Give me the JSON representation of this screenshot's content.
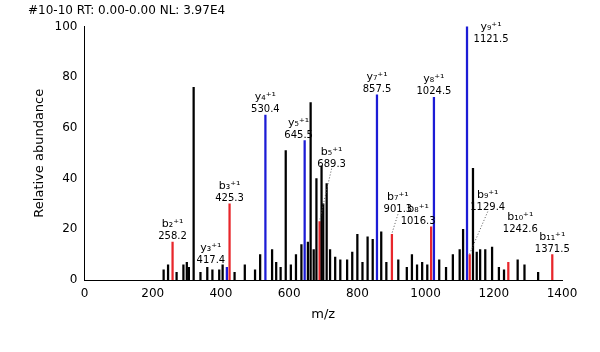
{
  "chart_data": {
    "type": "bar",
    "title": "#10-10 RT: 0.00-0.00 NL: 3.97E4",
    "x_label": "m/z",
    "y_label": "Relative abundance",
    "x": [
      232,
      245,
      258.2,
      270,
      290,
      300,
      306,
      320,
      340,
      360,
      375,
      395,
      405,
      417.4,
      425.3,
      440,
      470,
      500,
      515,
      530.4,
      550,
      562,
      575,
      590,
      605,
      620,
      636,
      645.5,
      655,
      663,
      672,
      680,
      689.3,
      695,
      700,
      710,
      720,
      735,
      750,
      770,
      785,
      800,
      815,
      830,
      845,
      857.5,
      870,
      885,
      901.3,
      920,
      945,
      960,
      975,
      990,
      1005,
      1016.3,
      1024.5,
      1040,
      1060,
      1080,
      1100,
      1110,
      1121.5,
      1129.4,
      1139,
      1150,
      1160,
      1175,
      1195,
      1215,
      1230,
      1242.6,
      1270,
      1290,
      1330,
      1371.5
    ],
    "values": [
      4,
      6,
      15,
      3,
      6,
      7,
      5,
      76,
      3,
      5,
      4,
      4,
      6,
      5,
      30,
      3,
      6,
      4,
      10,
      65,
      12,
      7,
      5,
      51,
      6,
      10,
      14,
      55,
      15,
      70,
      12,
      40,
      23,
      45,
      30,
      38,
      12,
      9,
      8,
      8,
      11,
      18,
      7,
      17,
      16,
      73,
      19,
      7,
      18,
      8,
      5,
      10,
      6,
      7,
      6,
      21,
      72,
      8,
      5,
      10,
      12,
      20,
      100,
      10,
      44,
      11,
      12,
      12,
      13,
      5,
      4,
      7,
      8,
      6,
      3,
      10
    ],
    "colors": [
      "#000000",
      "#000000",
      "#e8262b",
      "#000000",
      "#000000",
      "#000000",
      "#000000",
      "#000000",
      "#000000",
      "#000000",
      "#000000",
      "#000000",
      "#000000",
      "#1c1cd6",
      "#e8262b",
      "#000000",
      "#000000",
      "#000000",
      "#000000",
      "#1c1cd6",
      "#000000",
      "#000000",
      "#000000",
      "#000000",
      "#000000",
      "#000000",
      "#000000",
      "#1c1cd6",
      "#000000",
      "#000000",
      "#000000",
      "#000000",
      "#e8262b",
      "#000000",
      "#000000",
      "#000000",
      "#000000",
      "#000000",
      "#000000",
      "#000000",
      "#000000",
      "#000000",
      "#000000",
      "#000000",
      "#000000",
      "#1c1cd6",
      "#000000",
      "#000000",
      "#e8262b",
      "#000000",
      "#000000",
      "#000000",
      "#000000",
      "#000000",
      "#000000",
      "#e8262b",
      "#1c1cd6",
      "#000000",
      "#000000",
      "#000000",
      "#000000",
      "#000000",
      "#1c1cd6",
      "#e8262b",
      "#000000",
      "#000000",
      "#000000",
      "#000000",
      "#000000",
      "#000000",
      "#000000",
      "#e8262b",
      "#000000",
      "#000000",
      "#000000",
      "#e8262b"
    ],
    "annotations": [
      {
        "text": "b₂⁺¹",
        "x": 258.2
      },
      {
        "text": "y₃⁺¹",
        "x": 417.4
      },
      {
        "text": "b₃⁺¹",
        "x": 425.3
      },
      {
        "text": "y₄⁺¹",
        "x": 530.4
      },
      {
        "text": "y₅⁺¹",
        "x": 645.5
      },
      {
        "text": "b₅⁺¹",
        "x": 689.3
      },
      {
        "text": "y₇⁺¹",
        "x": 857.5
      },
      {
        "text": "b₇⁺¹",
        "x": 901.3
      },
      {
        "text": "b₈⁺¹",
        "x": 1016.3
      },
      {
        "text": "y₈⁺¹",
        "x": 1024.5
      },
      {
        "text": "y₉⁺¹",
        "x": 1121.5
      },
      {
        "text": "b₉⁺¹",
        "x": 1129.4
      },
      {
        "text": "b₁₀⁺¹",
        "x": 1242.6
      },
      {
        "text": "b₁₁⁺¹",
        "x": 1371.5
      }
    ],
    "xlim": [
      0,
      1400
    ],
    "xticks": [
      0,
      200,
      400,
      600,
      800,
      1000,
      1200,
      1400
    ],
    "ylim": [
      0,
      100
    ],
    "yticks": [
      0,
      20,
      40,
      60,
      80,
      100
    ],
    "grid": false
  }
}
